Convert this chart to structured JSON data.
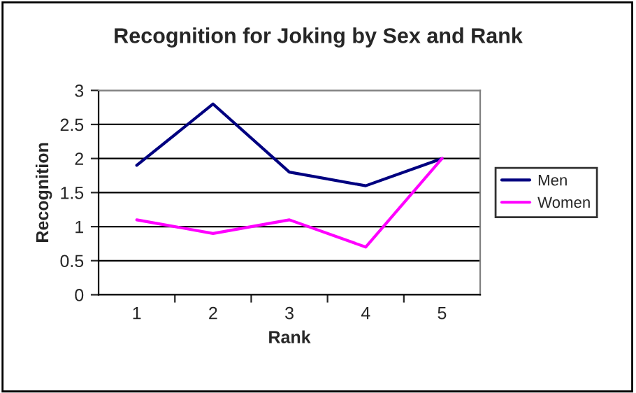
{
  "chart_data": {
    "type": "line",
    "title": "Recognition for Joking by Sex and Rank",
    "xlabel": "Rank",
    "ylabel": "Recognition",
    "categories": [
      "1",
      "2",
      "3",
      "4",
      "5"
    ],
    "series": [
      {
        "name": "Men",
        "color": "#000080",
        "values": [
          1.9,
          2.8,
          1.8,
          1.6,
          2.0
        ]
      },
      {
        "name": "Women",
        "color": "#ff00ff",
        "values": [
          1.1,
          0.9,
          1.1,
          0.7,
          2.0
        ]
      }
    ],
    "ylim": [
      0,
      3
    ],
    "yticks": [
      0,
      0.5,
      1,
      1.5,
      2,
      2.5,
      3
    ],
    "grid": "y",
    "legend": "right",
    "marker": "none",
    "line_style": "solid"
  }
}
